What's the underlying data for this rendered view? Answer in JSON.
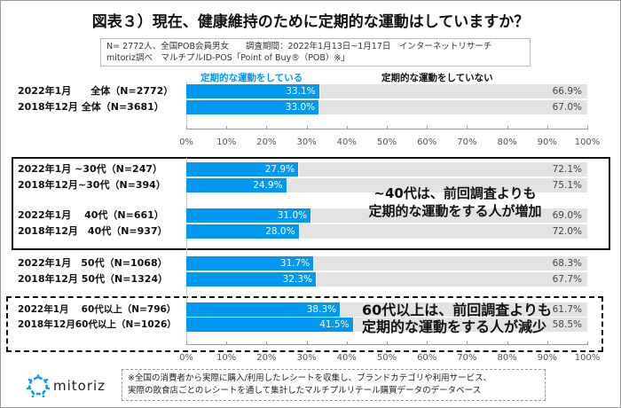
{
  "title": "図表３）現在、健康維持のために定期的な運動はしていますか？",
  "info": [
    "N= 2772人、全国POB会員男女　　調査期間：2022年1月13日~1月17日　インターネットリサーチ",
    "mitoriz調べ　マルチプルID-POS「Point of Buy®（POB）※」"
  ],
  "chart_data": {
    "type": "bar",
    "orientation": "horizontal-stacked-100",
    "legend": [
      "定期的な運動をしている",
      "定期的な運動をしていない"
    ],
    "colors": {
      "does": "#0098f0",
      "does_not": "#e3e3e3"
    },
    "xlim": [
      0,
      100
    ],
    "ticks": [
      "0%",
      "10%",
      "20%",
      "30%",
      "40%",
      "50%",
      "60%",
      "70%",
      "80%",
      "90%",
      "100%"
    ],
    "categories": [
      "2022年1月　　全体（N=2772）",
      "2018年12月 全体（N=3681）",
      "2022年1月 ~30代（N=247）",
      "2018年12月~30代（N=394）",
      "2022年1月　 40代（N=661）",
      "2018年12月　40代（N=937）",
      "2022年1月　50代（N=1068）",
      "2018年12月 50代（N=1324）",
      "2022年1月　 60代以上（N=796）",
      "2018年12月60代以上（N=1026）"
    ],
    "series": [
      {
        "name": "定期的な運動をしている",
        "values": [
          33.1,
          33.0,
          27.9,
          24.9,
          31.0,
          28.0,
          31.7,
          32.3,
          38.3,
          41.5
        ]
      },
      {
        "name": "定期的な運動をしていない",
        "values": [
          66.9,
          67.0,
          72.1,
          75.1,
          69.0,
          72.0,
          68.3,
          67.7,
          61.7,
          58.5
        ]
      }
    ],
    "annotations": [
      [
        "~40代は、前回調査よりも",
        "定期的な運動をする人が増加"
      ],
      [
        "60代以上は、前回調査よりも",
        "定期的な運動をする人が減少"
      ]
    ]
  },
  "footnote": [
    "※全国の消費者から実際に購入/利用したレシートを収集し、ブランドカテゴリや利用サービス、",
    "実際の飲食店ごとのレシートを通して集計したマルチプルリテール購買データのデータベース"
  ],
  "logo": "mitoriz"
}
